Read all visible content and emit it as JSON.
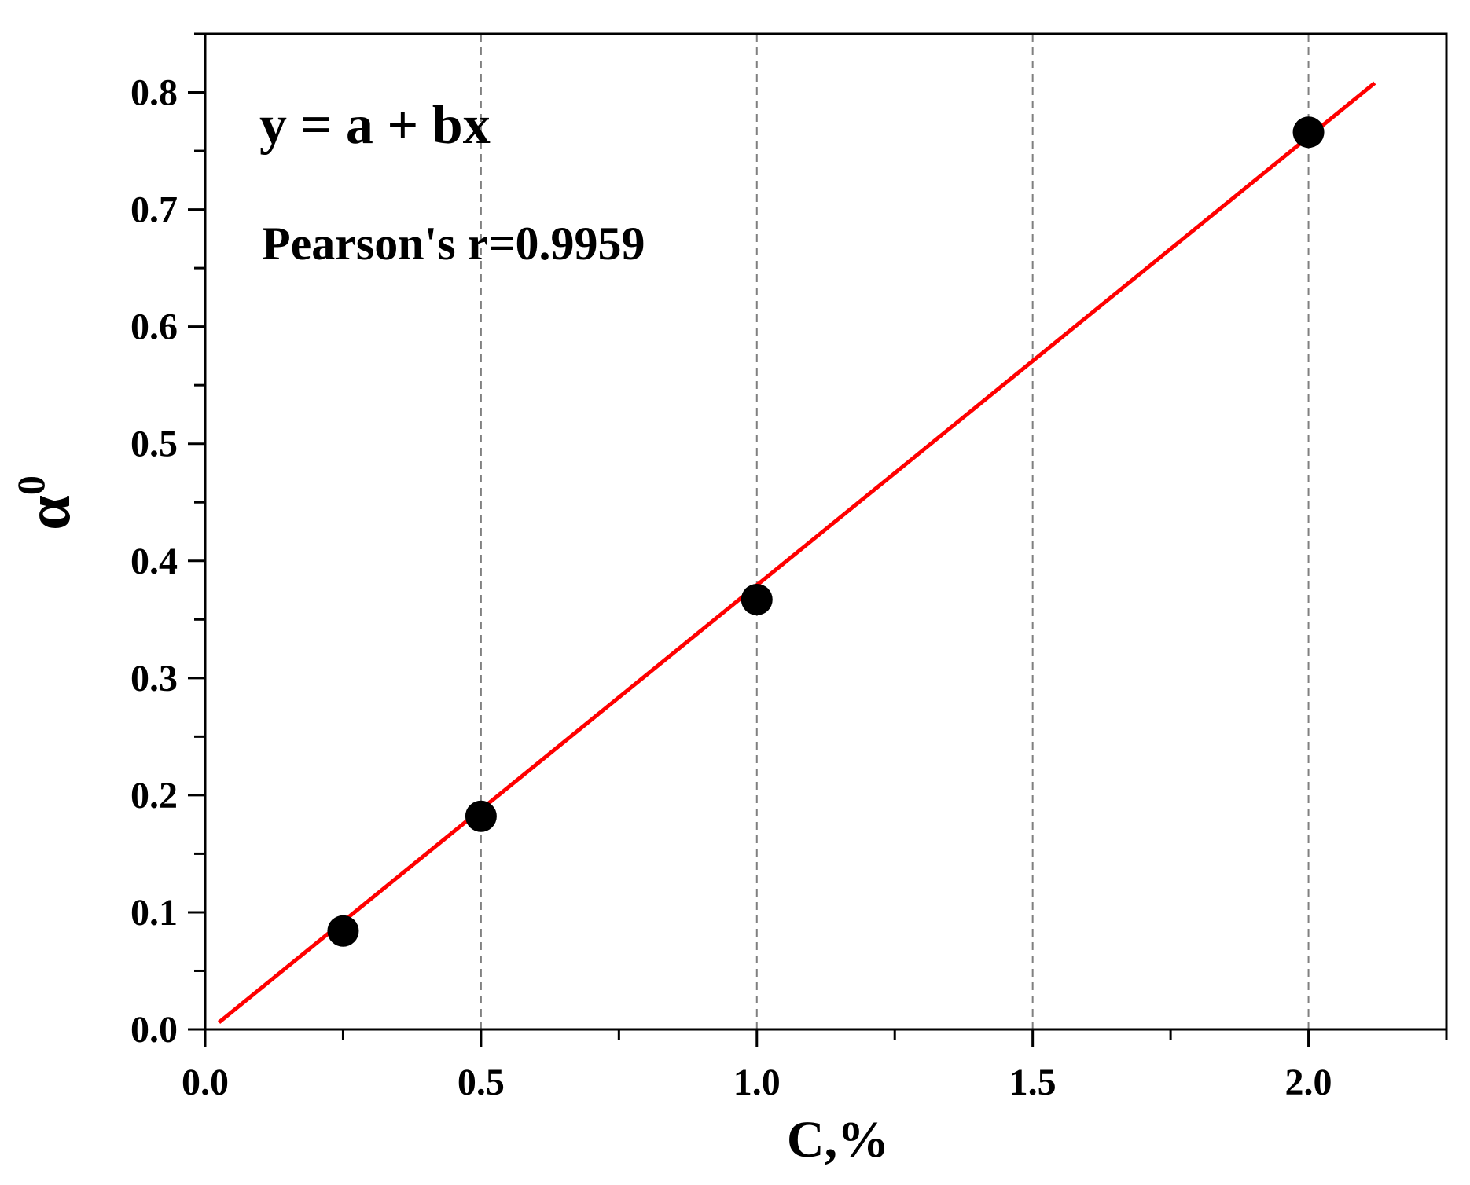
{
  "chart_data": {
    "type": "scatter",
    "xlabel": "C,%",
    "ylabel": "α",
    "ylabel_superscript": "0",
    "xlim": [
      0.0,
      2.25
    ],
    "ylim": [
      0.0,
      0.85
    ],
    "x_ticks": [
      "0.0",
      "0.5",
      "1.0",
      "1.5",
      "2.0"
    ],
    "y_ticks": [
      "0.0",
      "0.1",
      "0.2",
      "0.3",
      "0.4",
      "0.5",
      "0.6",
      "0.7",
      "0.8"
    ],
    "grid": "vertical dashed at major x ticks",
    "series": [
      {
        "marker": "circle",
        "color": "#000000",
        "x": [
          0.25,
          0.5,
          1.0,
          2.0
        ],
        "y": [
          0.084,
          0.182,
          0.367,
          0.766
        ]
      }
    ],
    "fit_line": {
      "color": "#ff0000",
      "x": [
        0.025,
        2.12
      ],
      "y": [
        0.006,
        0.808
      ]
    },
    "annotations": {
      "equation": "y = a + bx",
      "pearson": "Pearson's r=0.9959"
    }
  }
}
